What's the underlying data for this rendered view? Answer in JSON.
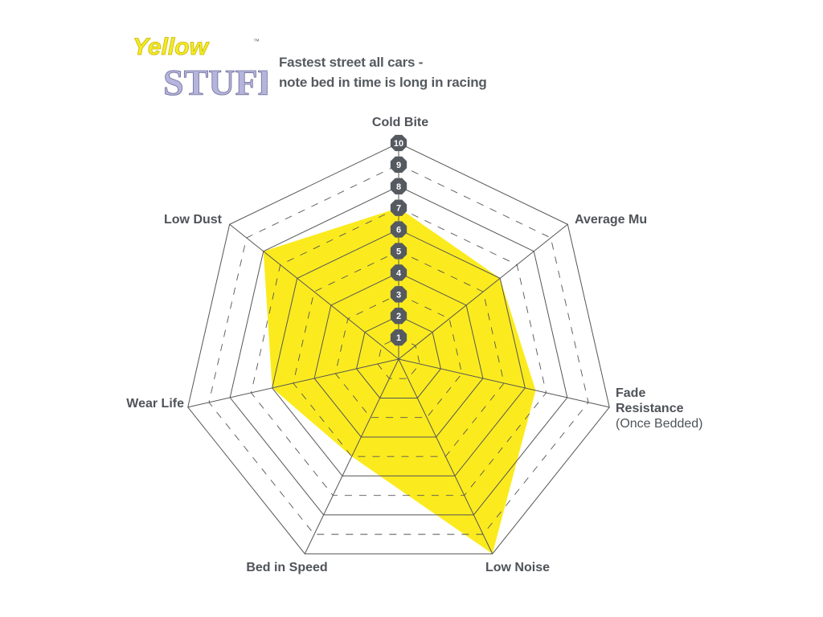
{
  "logo": {
    "text_top": "Yellow",
    "text_bottom": "STUFF",
    "trademark": "™",
    "colors": {
      "yellow": "#f4ea27",
      "lavender": "#b4b4dc"
    }
  },
  "subtitle": [
    "Fastest street all cars -",
    "note bed in time is long in racing"
  ],
  "chart_data": {
    "type": "radar",
    "title": "",
    "axes": [
      {
        "label": [
          "Cold Bite"
        ]
      },
      {
        "label": [
          "Average Mu"
        ]
      },
      {
        "label": [
          "Fade",
          "Resistance",
          "(Once Bedded)"
        ]
      },
      {
        "label": [
          "Low Noise"
        ]
      },
      {
        "label": [
          "Bed in Speed"
        ]
      },
      {
        "label": [
          "Wear Life"
        ]
      },
      {
        "label": [
          "Low Dust"
        ]
      }
    ],
    "scale_ticks": [
      "1",
      "2",
      "3",
      "4",
      "5",
      "6",
      "7",
      "8",
      "9",
      "10"
    ],
    "range": [
      0,
      10
    ],
    "series": [
      {
        "values": [
          7,
          6,
          6.5,
          10,
          5,
          6,
          8
        ],
        "color": "#fbeb1e"
      }
    ],
    "grid": "heptagon rings, even solid, odd dashed",
    "badge_color": "#555a60"
  }
}
